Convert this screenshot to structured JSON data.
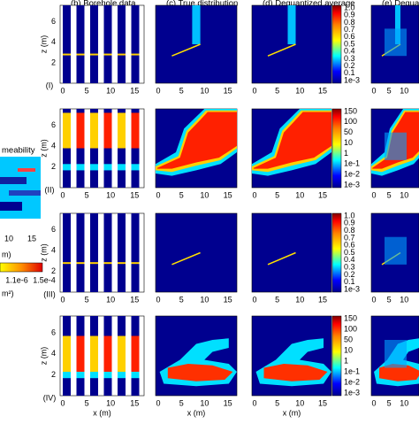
{
  "left_panel": {
    "title": "meability",
    "x_ticks": [
      "10",
      "15"
    ],
    "x_unit": "m)",
    "bar_labels": [
      "1.1e-6",
      "1.5e-4"
    ],
    "bar_unit": "m²)"
  },
  "panel_titles": [
    "(b) Borehole data",
    "(c) True distribution",
    "(d) Dequantized average",
    "(e) Dequantized"
  ],
  "axes": {
    "z_label": "z (m)",
    "x_label": "x (m)",
    "z_ticks": [
      "2",
      "4",
      "6"
    ],
    "x_ticks": [
      "0",
      "5",
      "10",
      "15"
    ]
  },
  "rows": [
    {
      "label": "(I)",
      "colorbar_ticks": [
        "1.0",
        "0.9",
        "0.8",
        "0.7",
        "0.6",
        "0.5",
        "0.4",
        "0.3",
        "0.2",
        "0.1",
        "1e-3"
      ]
    },
    {
      "label": "(II)",
      "colorbar_ticks": [
        "150",
        "100",
        "50",
        "10",
        "1",
        "1e-1",
        "1e-2",
        "1e-3"
      ]
    },
    {
      "label": "(III)",
      "colorbar_ticks": [
        "1.0",
        "0.9",
        "0.8",
        "0.7",
        "0.6",
        "0.5",
        "0.4",
        "0.3",
        "0.2",
        "0.1",
        "1e-3"
      ]
    },
    {
      "label": "(IV)",
      "colorbar_ticks": [
        "150",
        "100",
        "50",
        "10",
        "1",
        "1e-1",
        "1e-2",
        "1e-3"
      ]
    }
  ]
}
